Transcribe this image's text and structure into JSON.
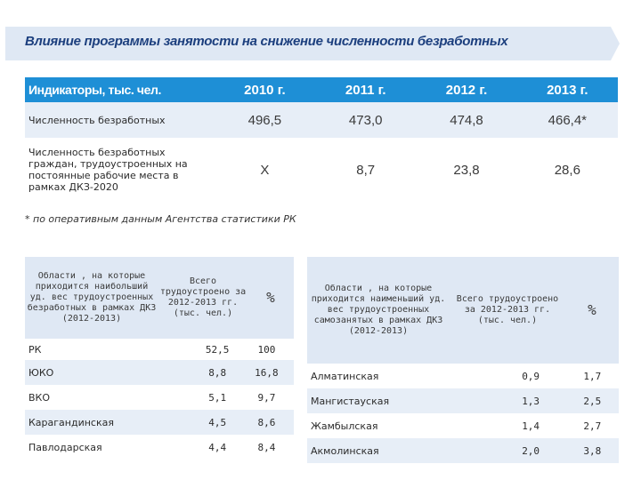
{
  "title": "Влияние программы занятости на снижение численности безработных",
  "main_table": {
    "header": {
      "label": "Индикаторы, тыс. чел.",
      "years": [
        "2010 г.",
        "2011 г.",
        "2012 г.",
        "2013 г."
      ]
    },
    "rows": [
      {
        "label": "Численность безработных",
        "values": [
          "496,5",
          "473,0",
          "474,8",
          "466,4*"
        ]
      },
      {
        "label": "Численность безработных граждан, трудоустроенных на постоянные рабочие места в рамках ДКЗ-2020",
        "values": [
          "Х",
          "8,7",
          "23,8",
          "28,6"
        ]
      }
    ]
  },
  "footnote": "* по оперативным данным Агентства статистики РК",
  "left_table": {
    "headers": [
      "Области , на которые приходится наибольший уд. вес трудоустроенных безработных в рамках ДКЗ (2012-2013)",
      "Всего трудоустроено за 2012-2013 гг. (тыс. чел.)",
      "%"
    ],
    "rows": [
      [
        "РК",
        "52,5",
        "100"
      ],
      [
        "ЮКО",
        "8,8",
        "16,8"
      ],
      [
        "ВКО",
        "5,1",
        "9,7"
      ],
      [
        "Карагандинская",
        "4,5",
        "8,6"
      ],
      [
        "Павлодарская",
        "4,4",
        "8,4"
      ]
    ]
  },
  "right_table": {
    "headers": [
      "Области , на которые приходится наименьший уд. вес трудоустроенных самозанятых в рамках ДКЗ (2012-2013)",
      "Всего трудоустроено за 2012-2013 гг. (тыс. чел.)",
      "%"
    ],
    "rows": [
      [
        "Алматинская",
        "0,9",
        "1,7"
      ],
      [
        "Мангистауская",
        "1,3",
        "2,5"
      ],
      [
        "Жамбылская",
        "1,4",
        "2,7"
      ],
      [
        "Акмолинская",
        "2,0",
        "3,8"
      ]
    ]
  }
}
